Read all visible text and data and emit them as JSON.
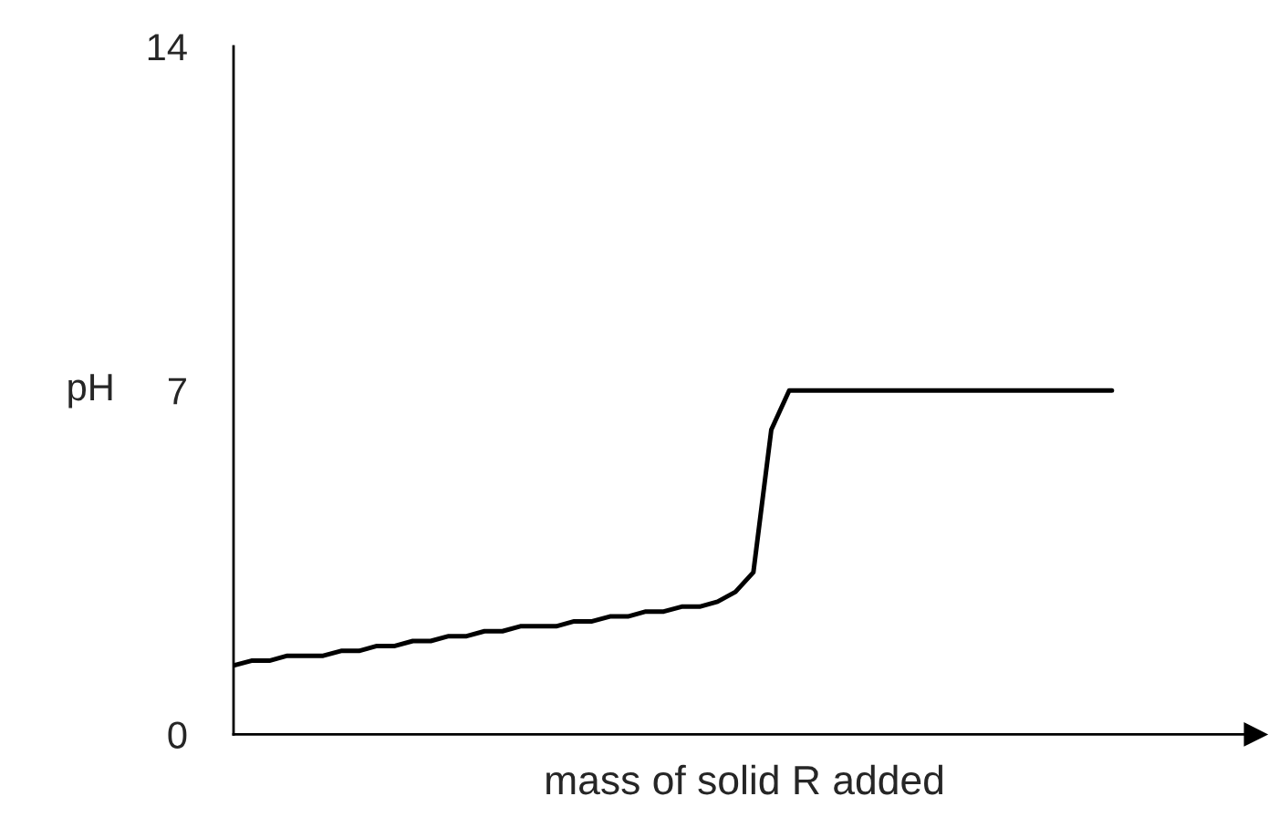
{
  "chart_data": {
    "type": "line",
    "xlabel": "mass of solid R added",
    "ylabel": "pH",
    "categories": [
      null,
      null,
      null,
      null,
      null,
      null,
      null,
      null,
      null,
      null,
      null,
      null,
      null,
      null,
      null,
      null,
      null,
      null,
      null,
      null,
      null,
      null,
      null,
      null,
      null,
      null,
      null,
      null,
      null,
      null,
      null,
      null,
      null,
      null,
      null,
      null,
      null,
      null,
      null,
      null,
      null,
      null,
      null,
      null,
      null,
      null,
      null,
      null,
      null,
      null,
      null,
      null,
      null,
      null,
      null,
      null,
      null,
      null
    ],
    "series": [
      {
        "color": "#000000",
        "values": [
          1.4,
          1.5,
          1.5,
          1.6,
          1.6,
          1.6,
          1.7,
          1.7,
          1.8,
          1.8,
          1.9,
          1.9,
          2.0,
          2.0,
          2.1,
          2.1,
          2.2,
          2.2,
          2.2,
          2.3,
          2.3,
          2.4,
          2.4,
          2.5,
          2.5,
          2.6,
          2.6,
          2.7,
          2.9,
          3.3,
          6.2,
          7.0,
          7.0,
          7.0,
          7.0,
          7.0,
          7.0,
          7.0,
          7.0,
          7.0,
          7.0,
          7.0,
          7.0,
          7.0,
          7.0,
          7.0,
          7.0,
          7.0,
          7.0,
          7.0,
          null,
          null,
          null,
          null,
          null,
          null,
          null,
          null
        ]
      }
    ],
    "ylim": [
      0,
      14
    ],
    "yticks": [
      0,
      7,
      14
    ],
    "tick_labels": "y",
    "grid": false,
    "legend": false,
    "marker": "none",
    "line_style": "solid"
  }
}
